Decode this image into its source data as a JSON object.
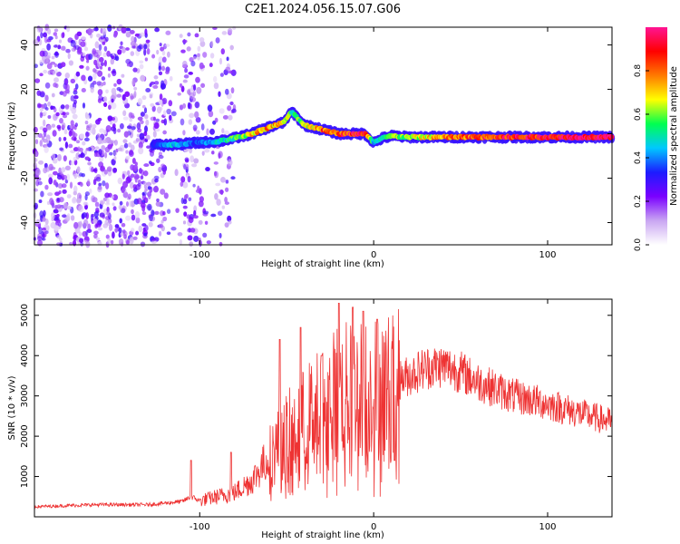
{
  "figure": {
    "title": "C2E1.2024.056.15.07.G06"
  },
  "chart_data": [
    {
      "type": "heatmap",
      "panel": "top",
      "xlabel": "Height of straight line (km)",
      "ylabel": "Frequency (Hz)",
      "xlim": [
        -195,
        137
      ],
      "ylim": [
        -50,
        48
      ],
      "xticks": [
        -100,
        0,
        100
      ],
      "yticks": [
        -40,
        -20,
        0,
        20,
        40
      ],
      "colorbar": {
        "label": "Normalized spectral amplitude",
        "range": [
          0,
          1
        ],
        "ticks": [
          "0.0",
          "0.2",
          "0.4",
          "0.6",
          "0.8"
        ],
        "colormap": [
          "#ffffff",
          "#c9a6f2",
          "#7a00ff",
          "#1c1cff",
          "#00c8ff",
          "#00ff50",
          "#ffff00",
          "#ff7a00",
          "#ff0000",
          "#ff1493"
        ]
      },
      "ridge": {
        "x": [
          -127,
          -115,
          -100,
          -90,
          -80,
          -70,
          -60,
          -52,
          -47,
          -40,
          -30,
          -20,
          -12,
          -5,
          0,
          5,
          10,
          20,
          40,
          60,
          100,
          137
        ],
        "y": [
          -5,
          -5,
          -4,
          -3.5,
          -2,
          0,
          3,
          5,
          10,
          4,
          2,
          0,
          0,
          0,
          -4,
          -2,
          -1,
          -1.5,
          -1.5,
          -1.5,
          -1.5,
          -1.5
        ],
        "amp": [
          0.3,
          0.45,
          0.35,
          0.45,
          0.55,
          0.7,
          0.75,
          0.7,
          0.5,
          0.6,
          0.8,
          0.85,
          0.9,
          0.9,
          0.45,
          0.55,
          0.6,
          0.6,
          0.75,
          0.85,
          0.92,
          0.95
        ]
      },
      "noise_region": {
        "x_range": [
          -195,
          -80
        ],
        "y_range": [
          -50,
          48
        ],
        "amp_range": [
          0.05,
          0.3
        ]
      }
    },
    {
      "type": "line",
      "panel": "bottom",
      "xlabel": "Height of straight line (km)",
      "ylabel": "SNR (10 * v/v)",
      "xlim": [
        -195,
        137
      ],
      "ylim": [
        0,
        5400
      ],
      "xticks": [
        -100,
        0,
        100
      ],
      "yticks": [
        1000,
        2000,
        3000,
        4000,
        5000
      ],
      "series": [
        {
          "color": "#ee3333",
          "envelope_x": [
            -195,
            -160,
            -130,
            -110,
            -105,
            -100,
            -90,
            -80,
            -70,
            -60,
            -50,
            -40,
            -30,
            -20,
            -10,
            0,
            10,
            20,
            30,
            40,
            50,
            60,
            80,
            100,
            120,
            137
          ],
          "envelope_y": [
            250,
            300,
            300,
            380,
            500,
            400,
            500,
            600,
            900,
            1500,
            2000,
            2400,
            2800,
            3100,
            3200,
            3200,
            3300,
            3500,
            3700,
            3750,
            3600,
            3350,
            3000,
            2800,
            2550,
            2350
          ],
          "spikes": [
            {
              "x": -105,
              "y": 1400
            },
            {
              "x": -82,
              "y": 1600
            },
            {
              "x": -54,
              "y": 4400
            },
            {
              "x": -42,
              "y": 4700
            },
            {
              "x": -30,
              "y": 4000
            },
            {
              "x": -20,
              "y": 5300
            },
            {
              "x": -12,
              "y": 5200
            },
            {
              "x": -6,
              "y": 5100
            },
            {
              "x": 2,
              "y": 4900
            },
            {
              "x": 12,
              "y": 1400
            }
          ]
        }
      ]
    }
  ]
}
